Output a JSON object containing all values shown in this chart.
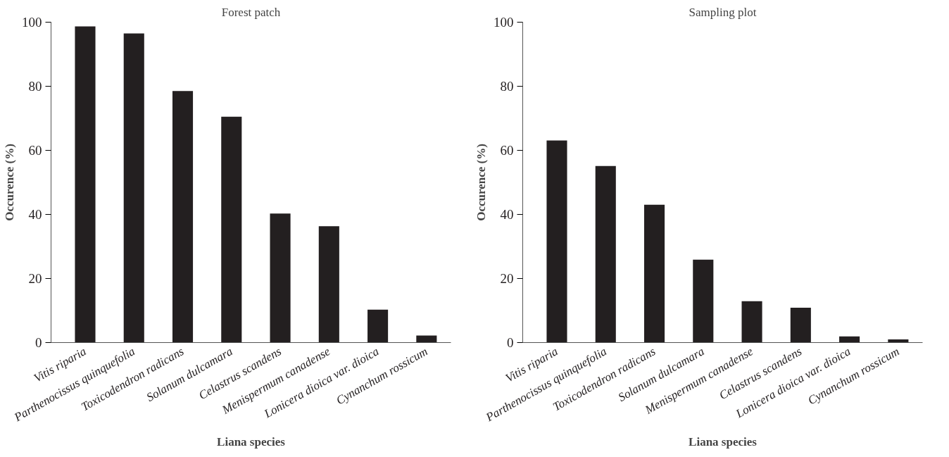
{
  "chart_data": [
    {
      "type": "bar",
      "title": "Forest patch",
      "xlabel": "Liana species",
      "ylabel": "Occurence (%)",
      "categories": [
        "Vitis riparia",
        "Parthenocissus quinquefolia",
        "Toxicodendron radicans",
        "Solanum dulcamara",
        "Celastrus scandens",
        "Menispermum canadense",
        "Lonicera dioica var. dioica",
        "Cynanchum rossicum"
      ],
      "values": [
        98.7,
        96.5,
        78.5,
        70.5,
        40.3,
        36.3,
        10.3,
        2.2
      ],
      "color": "#231f20",
      "ylim": [
        0,
        100
      ],
      "yticks": [
        0,
        20,
        40,
        60,
        80,
        100
      ],
      "grid": false
    },
    {
      "type": "bar",
      "title": "Sampling plot",
      "xlabel": "Liana species",
      "ylabel": "Occurence (%)",
      "categories": [
        "Vitis riparia",
        "Parthenocissus quinquefolia",
        "Toxicodendron radicans",
        "Solanum dulcamara",
        "Menispermum canadense",
        "Celastrus scandens",
        "Lonicera dioica var. dioica",
        "Cynanchum rossicum"
      ],
      "values": [
        63.1,
        55.1,
        43.0,
        25.9,
        12.9,
        10.9,
        1.9,
        1.0
      ],
      "color": "#231f20",
      "ylim": [
        0,
        100
      ],
      "yticks": [
        0,
        20,
        40,
        60,
        80,
        100
      ],
      "grid": false
    }
  ]
}
